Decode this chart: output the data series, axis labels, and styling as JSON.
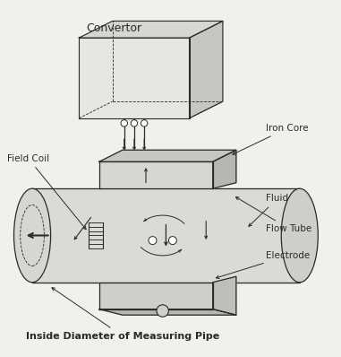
{
  "bg_color": "#f0f0ec",
  "line_color": "#2a2a2a",
  "labels": {
    "convertor": "Convertor",
    "iron_core": "Iron Core",
    "field_coil": "Field Coil",
    "fluid": "Fluid",
    "flow_tube": "Flow Tube",
    "electrode": "Electrode",
    "inside_diameter": "Inside Diameter of Measuring Pipe"
  },
  "label_fontsize": 7.5,
  "convertor_fontsize": 9
}
